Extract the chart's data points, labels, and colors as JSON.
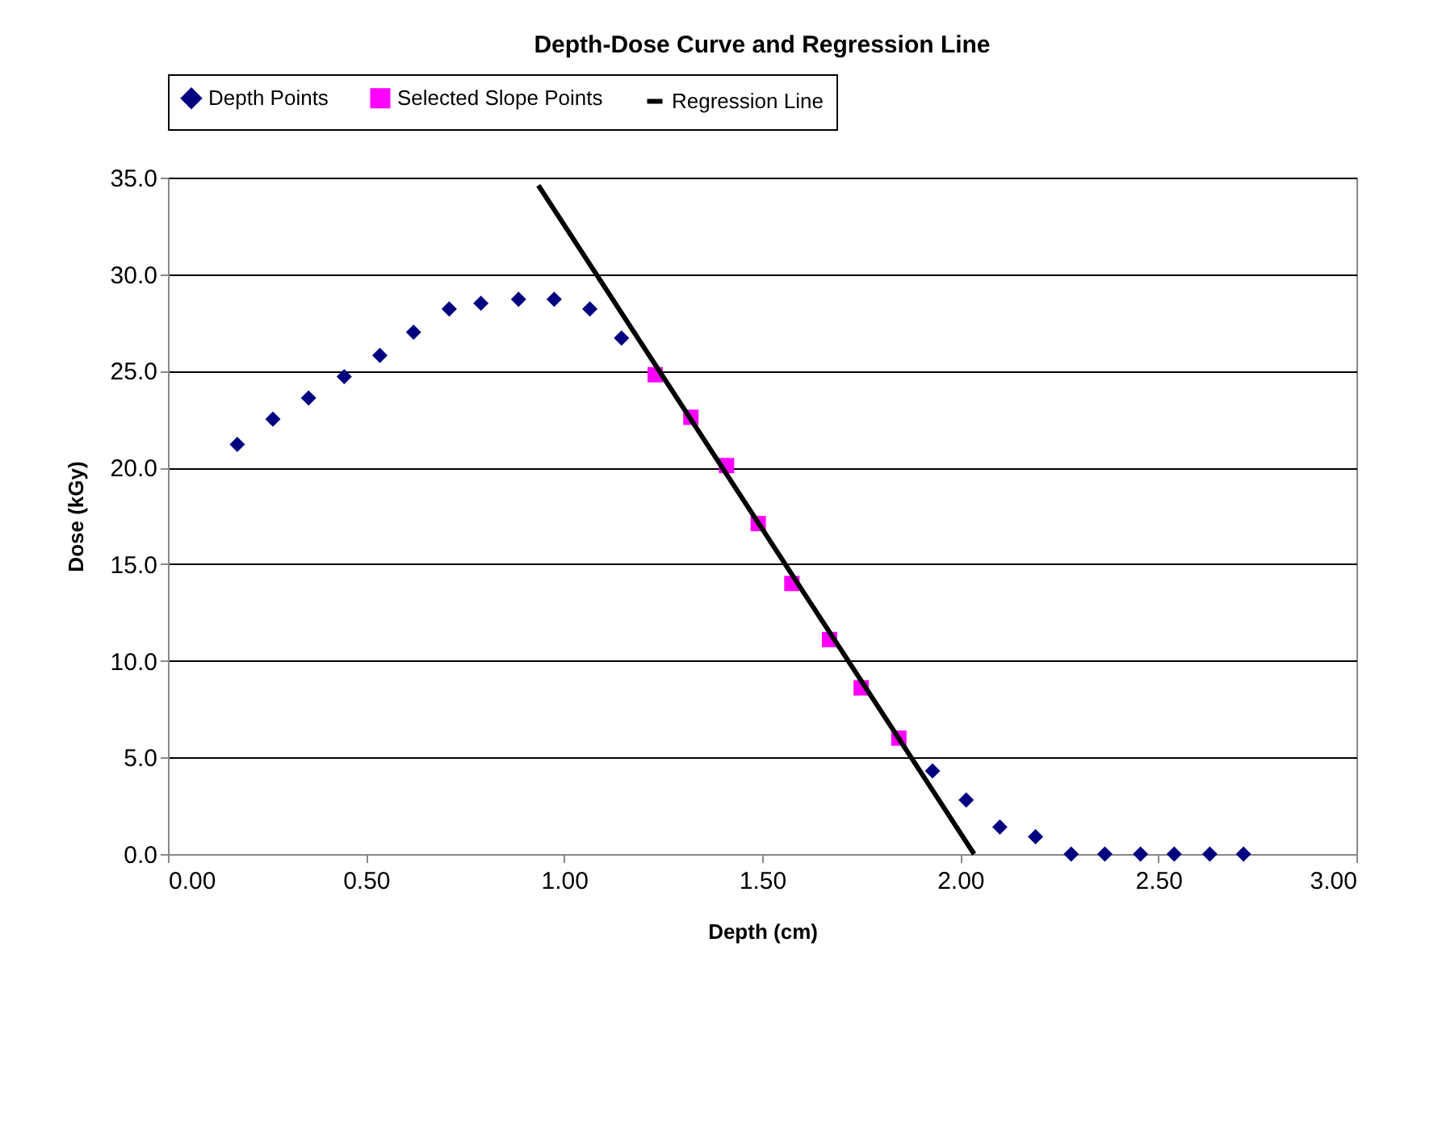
{
  "chart_data": {
    "type": "scatter",
    "title": "Depth-Dose Curve and Regression Line",
    "xlabel": "Depth (cm)",
    "ylabel": "Dose (kGy)",
    "xlim": [
      0,
      3
    ],
    "ylim": [
      0,
      35
    ],
    "xticks": [
      {
        "value": 0,
        "label": "0.00"
      },
      {
        "value": 0.5,
        "label": "0.50"
      },
      {
        "value": 1,
        "label": "1.00"
      },
      {
        "value": 1.5,
        "label": "1.50"
      },
      {
        "value": 2,
        "label": "2.00"
      },
      {
        "value": 2.5,
        "label": "2.50"
      },
      {
        "value": 3,
        "label": "3.00"
      }
    ],
    "yticks": [
      {
        "value": 0,
        "label": "0.0"
      },
      {
        "value": 5,
        "label": "5.0"
      },
      {
        "value": 10,
        "label": "10.0"
      },
      {
        "value": 15,
        "label": "15.0"
      },
      {
        "value": 20,
        "label": "20.0"
      },
      {
        "value": 25,
        "label": "25.0"
      },
      {
        "value": 30,
        "label": "30.0"
      },
      {
        "value": 35,
        "label": "35.0"
      }
    ],
    "grid": "y",
    "legend": "top",
    "series": [
      {
        "name": "Depth Points",
        "marker": "diamond",
        "color": "#000080",
        "x": [
          0.175,
          0.265,
          0.355,
          0.445,
          0.535,
          0.62,
          0.71,
          0.79,
          0.885,
          0.975,
          1.065,
          1.145,
          1.93,
          2.015,
          2.1,
          2.19,
          2.28,
          2.365,
          2.455,
          2.54,
          2.63,
          2.715
        ],
        "values": [
          21.2,
          22.5,
          23.6,
          24.7,
          25.8,
          27.0,
          28.2,
          28.5,
          28.7,
          28.7,
          28.2,
          26.7,
          4.3,
          2.8,
          1.4,
          0.9,
          0,
          0,
          0,
          0,
          0,
          0
        ]
      },
      {
        "name": "Selected Slope Points",
        "marker": "square",
        "color": "#ff00ff",
        "x": [
          1.23,
          1.32,
          1.41,
          1.49,
          1.575,
          1.67,
          1.75,
          1.845
        ],
        "values": [
          24.8,
          22.6,
          20.1,
          17.1,
          14.0,
          11.1,
          8.6,
          6.0
        ]
      },
      {
        "name": "Regression Line",
        "type": "line",
        "marker": "none",
        "color": "#000000",
        "x": [
          0.935,
          2.035
        ],
        "values": [
          34.6,
          0
        ]
      }
    ]
  }
}
